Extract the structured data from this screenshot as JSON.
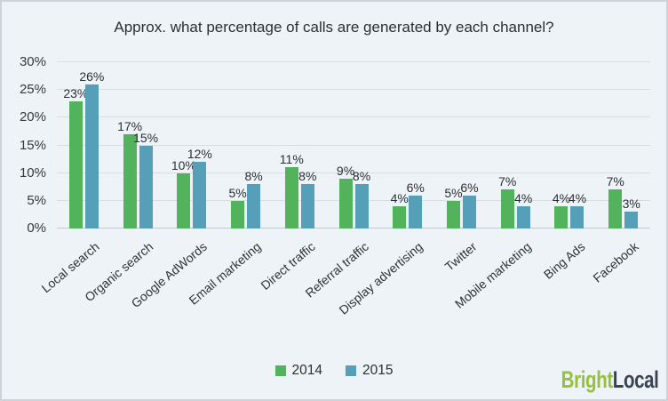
{
  "title": "Approx. what percentage of calls are generated by each channel?",
  "chart_data": {
    "type": "bar",
    "categories": [
      "Local search",
      "Organic search",
      "Google AdWords",
      "Email marketing",
      "Direct traffic",
      "Referral traffic",
      "Display advertising",
      "Twitter",
      "Mobile marketing",
      "Bing Ads",
      "Facebook"
    ],
    "series": [
      {
        "name": "2014",
        "color": "#52b35c",
        "values": [
          23,
          17,
          10,
          5,
          11,
          9,
          4,
          5,
          7,
          4,
          7
        ]
      },
      {
        "name": "2015",
        "color": "#559fb8",
        "values": [
          26,
          15,
          12,
          8,
          8,
          8,
          6,
          6,
          4,
          4,
          3
        ]
      }
    ],
    "title": "Approx. what percentage of calls are generated by each channel?",
    "xlabel": "",
    "ylabel": "",
    "ylim": [
      0,
      30
    ],
    "yticks": [
      "30%",
      "25%",
      "20%",
      "15%",
      "10%",
      "5%",
      "0%"
    ],
    "value_suffix": "%",
    "grid": "horizontal",
    "legend_position": "bottom-center",
    "bar_label_position": "above"
  },
  "branding": {
    "logo_part1": "Bright",
    "logo_part1_color": "#97c13d",
    "logo_part2": "Local",
    "logo_part2_color": "#3a4450"
  }
}
